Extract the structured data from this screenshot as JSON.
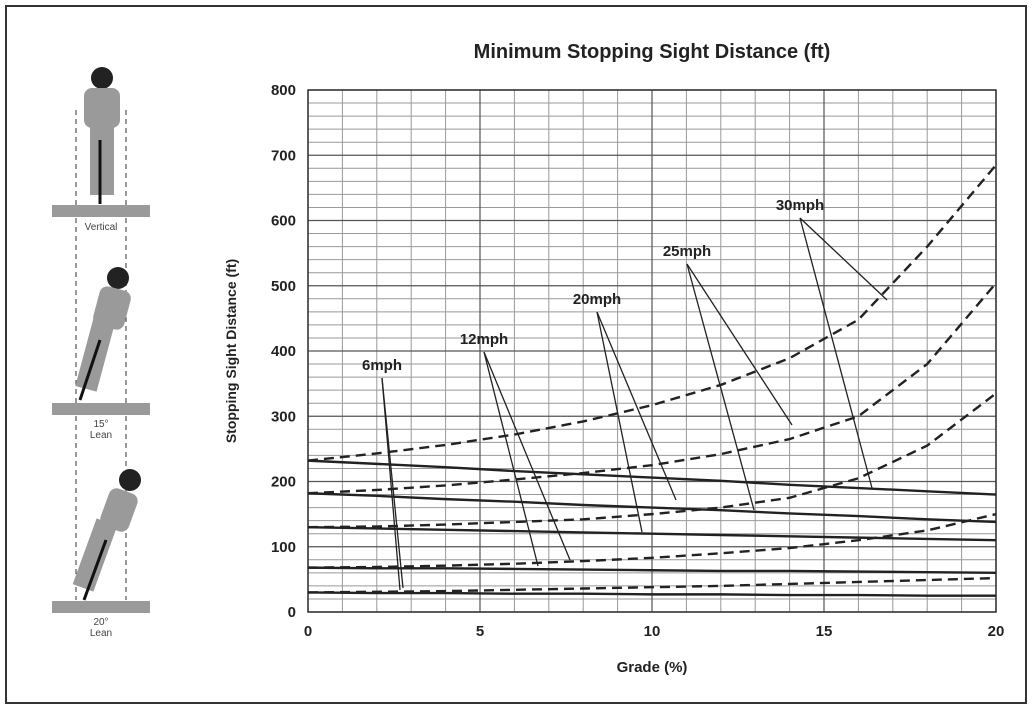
{
  "figures": [
    "Vertical",
    "15°\nLean",
    "20°\nLean"
  ],
  "chart_data": {
    "type": "line",
    "title": "Minimum Stopping Sight Distance (ft)",
    "x_label": "Grade (%)",
    "y_label": "Stopping Sight Distance (ft)",
    "x": [
      0,
      2,
      4,
      6,
      8,
      10,
      12,
      14,
      16,
      18,
      20
    ],
    "xlim": [
      0,
      20
    ],
    "xticks": [
      0,
      5,
      10,
      15,
      20
    ],
    "ylim": [
      0,
      800
    ],
    "yticks": [
      0,
      100,
      200,
      300,
      400,
      500,
      600,
      700,
      800
    ],
    "grid": true,
    "annotations": [
      "6mph",
      "12mph",
      "20mph",
      "25mph",
      "30mph"
    ],
    "series": [
      {
        "color": "#222222",
        "dashed": true,
        "values": [
          30,
          31,
          32,
          34,
          36,
          38,
          40,
          43,
          46,
          49,
          52
        ]
      },
      {
        "color": "#222222",
        "dashed": false,
        "values": [
          30,
          29,
          29,
          28,
          28,
          27,
          27,
          26,
          26,
          25,
          25
        ]
      },
      {
        "color": "#222222",
        "dashed": true,
        "values": [
          68,
          69,
          71,
          74,
          78,
          83,
          90,
          98,
          110,
          125,
          150
        ]
      },
      {
        "color": "#222222",
        "dashed": false,
        "values": [
          68,
          67,
          67,
          66,
          65,
          64,
          63,
          63,
          62,
          61,
          60
        ]
      },
      {
        "color": "#222222",
        "dashed": true,
        "values": [
          130,
          131,
          134,
          138,
          142,
          150,
          160,
          175,
          205,
          255,
          335
        ]
      },
      {
        "color": "#222222",
        "dashed": false,
        "values": [
          130,
          128,
          126,
          124,
          122,
          120,
          118,
          116,
          114,
          112,
          110
        ]
      },
      {
        "color": "#222222",
        "dashed": true,
        "values": [
          182,
          187,
          194,
          203,
          213,
          225,
          242,
          265,
          300,
          380,
          504
        ]
      },
      {
        "color": "#222222",
        "dashed": false,
        "values": [
          182,
          178,
          173,
          169,
          164,
          160,
          156,
          151,
          147,
          142,
          138
        ]
      },
      {
        "color": "#222222",
        "dashed": true,
        "values": [
          232,
          243,
          256,
          272,
          292,
          317,
          348,
          389,
          448,
          560,
          685
        ]
      },
      {
        "color": "#222222",
        "dashed": false,
        "values": [
          232,
          227,
          222,
          216,
          211,
          206,
          201,
          195,
          190,
          185,
          180
        ]
      }
    ]
  }
}
